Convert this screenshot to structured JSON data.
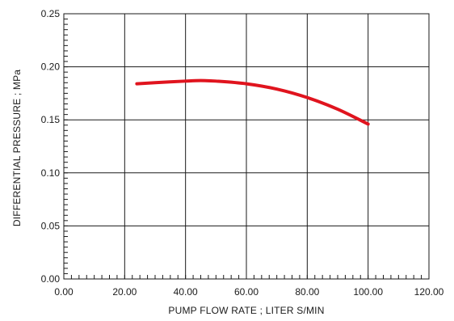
{
  "chart_data": {
    "type": "line",
    "xlabel": "PUMP FLOW RATE ; LITER S/MIN",
    "ylabel": "DIFFERENTIAL PRESSURE ; MPa",
    "xlim": [
      0,
      120
    ],
    "ylim": [
      0,
      0.25
    ],
    "x_ticks": [
      "0.00",
      "20.00",
      "40.00",
      "60.00",
      "80.00",
      "100.00",
      "120.00"
    ],
    "y_ticks": [
      "0.00",
      "0.05",
      "0.10",
      "0.15",
      "0.20",
      "0.25"
    ],
    "grid": true,
    "minor_ticks": true,
    "line_color": "#e0141e",
    "series": [
      {
        "x": [
          24,
          30,
          40,
          45,
          50,
          60,
          70,
          80,
          90,
          100
        ],
        "y": [
          0.184,
          0.185,
          0.1865,
          0.187,
          0.1865,
          0.184,
          0.179,
          0.171,
          0.16,
          0.146
        ]
      }
    ]
  }
}
